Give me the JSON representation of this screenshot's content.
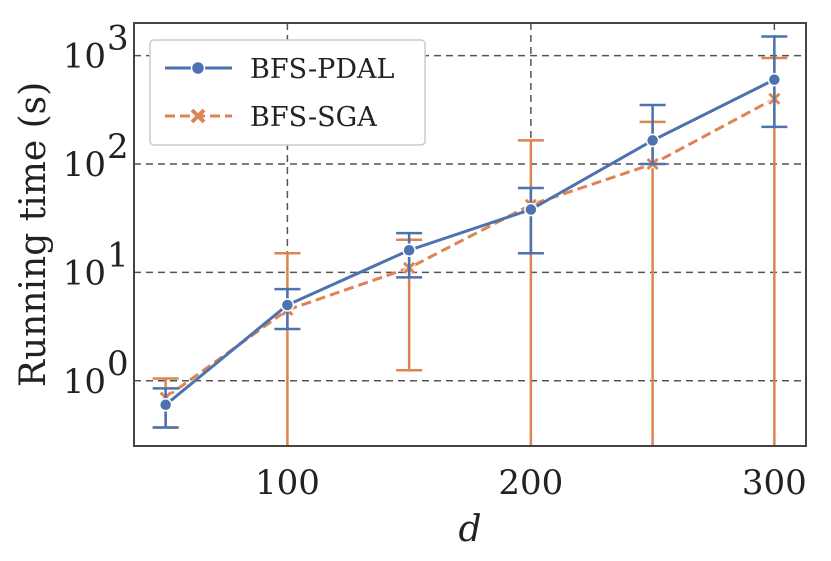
{
  "chart_data": {
    "type": "line",
    "xlabel": "d",
    "ylabel": "Running time (s)",
    "y_scale": "log",
    "ylim": [
      0.25,
      2000
    ],
    "xlim": [
      37,
      313
    ],
    "x": [
      50,
      100,
      150,
      200,
      250,
      300
    ],
    "x_ticks": [
      100,
      200,
      300
    ],
    "x_tick_labels": [
      "100",
      "200",
      "300"
    ],
    "y_ticks": [
      1,
      10,
      100,
      1000
    ],
    "y_tick_labels": [
      {
        "base": "10",
        "exp": "0"
      },
      {
        "base": "10",
        "exp": "1"
      },
      {
        "base": "10",
        "exp": "2"
      },
      {
        "base": "10",
        "exp": "3"
      }
    ],
    "grid": true,
    "legend_position": "top-left",
    "series": [
      {
        "name": "BFS-PDAL",
        "color": "#4c72b0",
        "line_style": "solid",
        "marker": "circle",
        "values": [
          0.6,
          5,
          16,
          38,
          165,
          600
        ],
        "err_low": [
          0.37,
          3,
          9,
          15,
          100,
          220
        ],
        "err_high": [
          0.85,
          7,
          23,
          60,
          350,
          1500
        ]
      },
      {
        "name": "BFS-SGA",
        "color": "#dd8452",
        "line_style": "dashed",
        "marker": "x",
        "values": [
          0.7,
          4.5,
          11,
          42,
          100,
          400
        ],
        "err_low": [
          0.37,
          0.25,
          1.25,
          0.25,
          0.25,
          0.25
        ],
        "err_high": [
          1.05,
          15,
          20,
          165,
          245,
          950
        ]
      }
    ]
  }
}
